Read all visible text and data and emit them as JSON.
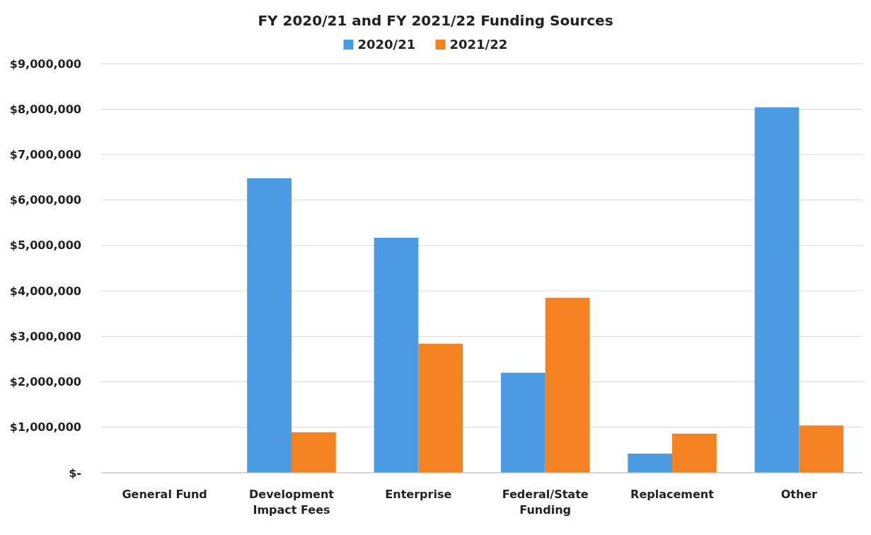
{
  "chart_data": {
    "type": "bar",
    "title": "FY 2020/21 and FY 2021/22 Funding Sources",
    "categories": [
      "General Fund",
      "Development Impact Fees",
      "Enterprise",
      "Federal/State Funding",
      "Replacement",
      "Other"
    ],
    "series": [
      {
        "name": "2020/21",
        "color": "#4a9be2",
        "values": [
          0,
          6480000,
          5170000,
          2200000,
          420000,
          8040000
        ]
      },
      {
        "name": "2021/22",
        "color": "#f58220",
        "values": [
          0,
          890000,
          2840000,
          3850000,
          860000,
          1040000
        ]
      }
    ],
    "ylim": [
      0,
      9000000
    ],
    "yticks": [
      {
        "value": 0,
        "label": "$-"
      },
      {
        "value": 1000000,
        "label": "$1,000,000"
      },
      {
        "value": 2000000,
        "label": "$2,000,000"
      },
      {
        "value": 3000000,
        "label": "$3,000,000"
      },
      {
        "value": 4000000,
        "label": "$4,000,000"
      },
      {
        "value": 5000000,
        "label": "$5,000,000"
      },
      {
        "value": 6000000,
        "label": "$6,000,000"
      },
      {
        "value": 7000000,
        "label": "$7,000,000"
      },
      {
        "value": 8000000,
        "label": "$8,000,000"
      },
      {
        "value": 9000000,
        "label": "$9,000,000"
      }
    ],
    "grid": "y",
    "legend": "top"
  }
}
